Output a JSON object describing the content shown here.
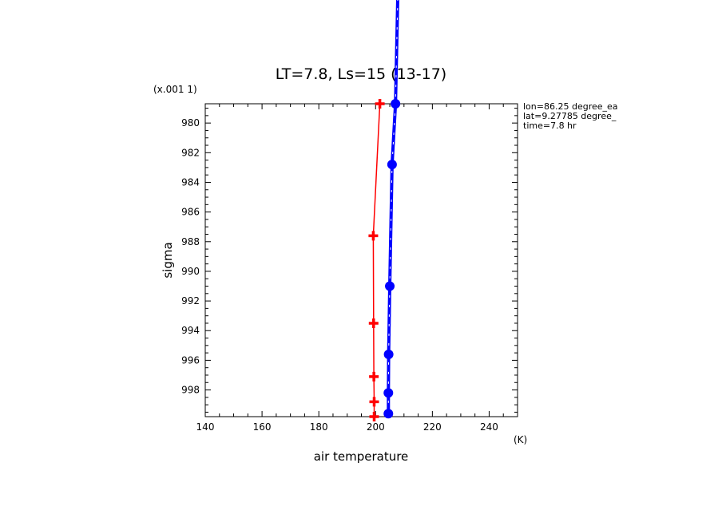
{
  "chart_data": {
    "type": "line",
    "title": "LT=7.8, Ls=15 (13-17)",
    "xlabel": "air temperature",
    "xunit": "(K)",
    "ylabel": "sigma",
    "yscale_label": "(x.001 1)",
    "xlim": [
      140,
      250
    ],
    "ylim": [
      999.8,
      978.7
    ],
    "y_inverted": true,
    "grid": false,
    "x_ticks": [
      140,
      160,
      180,
      200,
      220,
      240
    ],
    "y_ticks": [
      980,
      982,
      984,
      986,
      988,
      990,
      992,
      994,
      996,
      998
    ],
    "series": [
      {
        "color": "#ff0000",
        "marker": "plus",
        "style": "solid",
        "points": [
          {
            "x": 201.5,
            "y": 978.7
          },
          {
            "x": 199.2,
            "y": 987.6
          },
          {
            "x": 199.3,
            "y": 993.5
          },
          {
            "x": 199.4,
            "y": 997.1
          },
          {
            "x": 199.5,
            "y": 998.8
          },
          {
            "x": 199.5,
            "y": 999.8
          }
        ]
      },
      {
        "color": "#0000ff",
        "marker": "circle",
        "style": "dashed-thick",
        "points": [
          {
            "x": 207.8,
            "y": 971.6
          },
          {
            "x": 207.0,
            "y": 978.7
          },
          {
            "x": 205.8,
            "y": 982.8
          },
          {
            "x": 205.0,
            "y": 991.0
          },
          {
            "x": 204.6,
            "y": 995.6
          },
          {
            "x": 204.5,
            "y": 998.2
          },
          {
            "x": 204.5,
            "y": 999.6
          }
        ]
      }
    ],
    "annotations": {
      "lon": "lon=86.25 degree_ea",
      "lat": "lat=9.27785 degree_",
      "time": "time=7.8 hr"
    }
  }
}
